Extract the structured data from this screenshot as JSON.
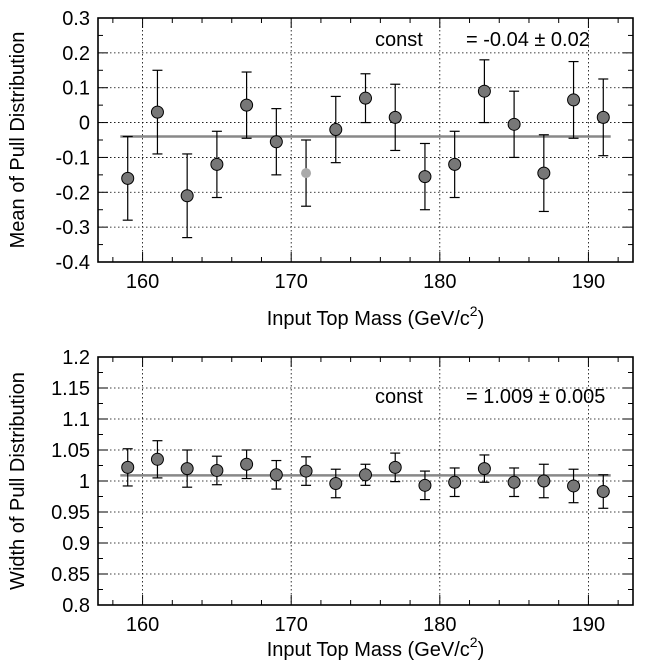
{
  "chart_data": [
    {
      "type": "scatter",
      "xlabel": "Input Top Mass (GeV/c",
      "xlabel_sup": "2",
      "xlabel_close": ")",
      "ylabel": "Mean of Pull Distribution",
      "xlim": [
        157,
        193
      ],
      "ylim": [
        -0.4,
        0.3
      ],
      "xticks": [
        "160",
        "170",
        "180",
        "190"
      ],
      "xtick_values": [
        160,
        170,
        180,
        190
      ],
      "yticks": [
        "-0.4",
        "-0.3",
        "-0.2",
        "-0.1",
        "0",
        "0.1",
        "0.2",
        "0.3"
      ],
      "ytick_values": [
        -0.4,
        -0.3,
        -0.2,
        -0.1,
        0,
        0.1,
        0.2,
        0.3
      ],
      "grid": true,
      "fit": {
        "label": "const",
        "value_text": "= -0.04 ± 0.02",
        "value": -0.04
      },
      "points": [
        {
          "x": 159,
          "y": -0.16,
          "err": 0.12,
          "highlight": false
        },
        {
          "x": 161,
          "y": 0.03,
          "err": 0.12,
          "highlight": false
        },
        {
          "x": 163,
          "y": -0.21,
          "err": 0.12,
          "highlight": false
        },
        {
          "x": 165,
          "y": -0.12,
          "err": 0.095,
          "highlight": false
        },
        {
          "x": 167,
          "y": 0.05,
          "err": 0.095,
          "highlight": false
        },
        {
          "x": 169,
          "y": -0.055,
          "err": 0.095,
          "highlight": false
        },
        {
          "x": 171,
          "y": -0.145,
          "err": 0.095,
          "highlight": true
        },
        {
          "x": 173,
          "y": -0.02,
          "err": 0.095,
          "highlight": false
        },
        {
          "x": 175,
          "y": 0.07,
          "err": 0.07,
          "highlight": false
        },
        {
          "x": 177,
          "y": 0.015,
          "err": 0.095,
          "highlight": false
        },
        {
          "x": 179,
          "y": -0.155,
          "err": 0.095,
          "highlight": false
        },
        {
          "x": 181,
          "y": -0.12,
          "err": 0.095,
          "highlight": false
        },
        {
          "x": 183,
          "y": 0.09,
          "err": 0.09,
          "highlight": false
        },
        {
          "x": 185,
          "y": -0.005,
          "err": 0.095,
          "highlight": false
        },
        {
          "x": 187,
          "y": -0.145,
          "err": 0.11,
          "highlight": false
        },
        {
          "x": 189,
          "y": 0.065,
          "err": 0.11,
          "highlight": false
        },
        {
          "x": 191,
          "y": 0.015,
          "err": 0.11,
          "highlight": false
        }
      ],
      "colors": {
        "point": "#777777",
        "highlight": "#aaaaaa",
        "fit": "#888888"
      }
    },
    {
      "type": "scatter",
      "xlabel": "Input Top Mass (GeV/c",
      "xlabel_sup": "2",
      "xlabel_close": ")",
      "ylabel": "Width of Pull Distribution",
      "xlim": [
        157,
        193
      ],
      "ylim": [
        0.8,
        1.2
      ],
      "xticks": [
        "160",
        "170",
        "180",
        "190"
      ],
      "xtick_values": [
        160,
        170,
        180,
        190
      ],
      "yticks": [
        "0.8",
        "0.85",
        "0.9",
        "0.95",
        "1",
        "1.05",
        "1.1",
        "1.15",
        "1.2"
      ],
      "ytick_values": [
        0.8,
        0.85,
        0.9,
        0.95,
        1.0,
        1.05,
        1.1,
        1.15,
        1.2
      ],
      "grid": true,
      "fit": {
        "label": "const",
        "value_text": "= 1.009 ± 0.005",
        "value": 1.009
      },
      "points": [
        {
          "x": 159,
          "y": 1.022,
          "err": 0.03,
          "highlight": false
        },
        {
          "x": 161,
          "y": 1.035,
          "err": 0.03,
          "highlight": false
        },
        {
          "x": 163,
          "y": 1.02,
          "err": 0.03,
          "highlight": false
        },
        {
          "x": 165,
          "y": 1.017,
          "err": 0.023,
          "highlight": false
        },
        {
          "x": 167,
          "y": 1.027,
          "err": 0.023,
          "highlight": false
        },
        {
          "x": 169,
          "y": 1.01,
          "err": 0.023,
          "highlight": false
        },
        {
          "x": 171,
          "y": 1.016,
          "err": 0.023,
          "highlight": false
        },
        {
          "x": 173,
          "y": 0.996,
          "err": 0.023,
          "highlight": false
        },
        {
          "x": 175,
          "y": 1.01,
          "err": 0.017,
          "highlight": false
        },
        {
          "x": 177,
          "y": 1.022,
          "err": 0.023,
          "highlight": false
        },
        {
          "x": 179,
          "y": 0.993,
          "err": 0.023,
          "highlight": false
        },
        {
          "x": 181,
          "y": 0.998,
          "err": 0.023,
          "highlight": false
        },
        {
          "x": 183,
          "y": 1.02,
          "err": 0.022,
          "highlight": false
        },
        {
          "x": 185,
          "y": 0.998,
          "err": 0.023,
          "highlight": false
        },
        {
          "x": 187,
          "y": 1.0,
          "err": 0.027,
          "highlight": false
        },
        {
          "x": 189,
          "y": 0.992,
          "err": 0.027,
          "highlight": false
        },
        {
          "x": 191,
          "y": 0.983,
          "err": 0.027,
          "highlight": false
        }
      ],
      "colors": {
        "point": "#777777",
        "highlight": "#aaaaaa",
        "fit": "#888888"
      }
    }
  ]
}
